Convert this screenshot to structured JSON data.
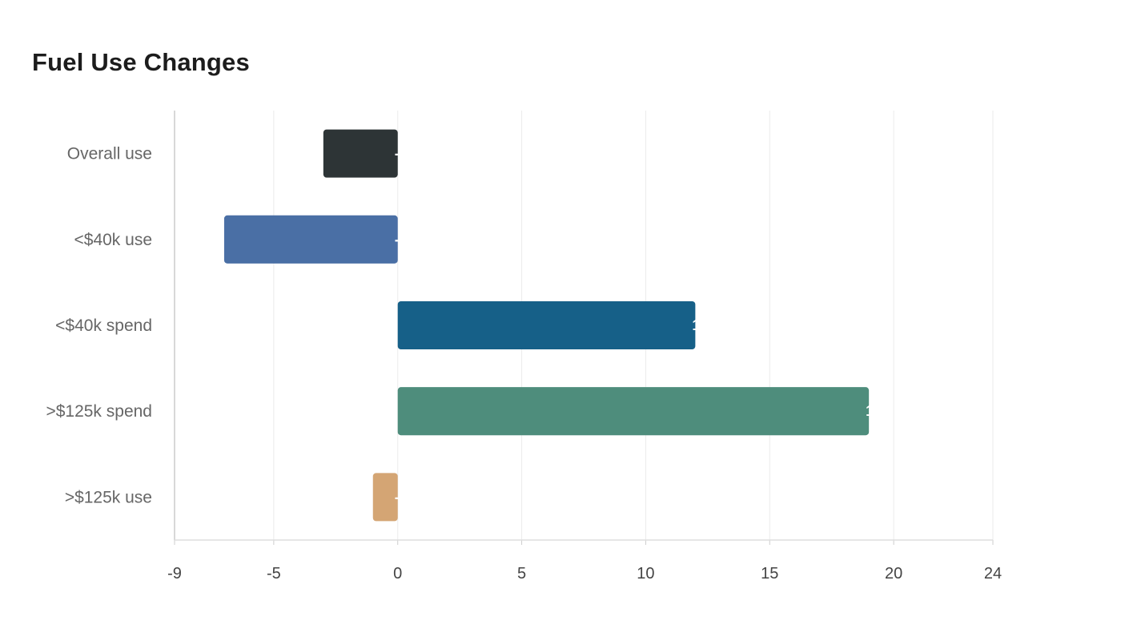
{
  "chart_data": {
    "type": "bar",
    "orientation": "horizontal",
    "title": "Fuel Use Changes",
    "xlabel": "",
    "ylabel": "",
    "categories": [
      "Overall use",
      "<$40k use",
      "<$40k spend",
      ">$125k spend",
      ">$125k use"
    ],
    "values": [
      -3,
      -7,
      12,
      19,
      -1
    ],
    "colors": [
      "#2d3436",
      "#4a6fa5",
      "#166088",
      "#4e8d7c",
      "#d4a574"
    ],
    "xlim": [
      -9,
      24
    ],
    "xticks": [
      -9,
      -5,
      0,
      5,
      10,
      15,
      20,
      24
    ],
    "grid": true,
    "legend": "none"
  }
}
